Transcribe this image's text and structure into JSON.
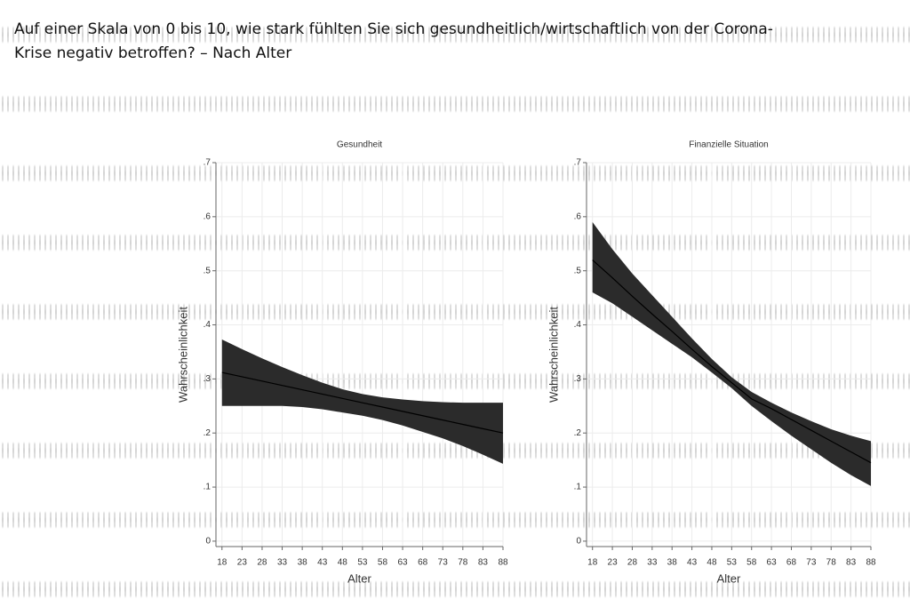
{
  "heading": [
    "Auf einer Skala von 0 bis 10, wie stark fühlten Sie sich gesundheitlich/wirtschaftlich von der Corona-",
    "Krise negativ betroffen? – Nach Alter"
  ],
  "chart_data": [
    {
      "type": "line",
      "title": "Gesundheit",
      "x_label": "Alter",
      "y_label": "Wahrscheinlichkeit",
      "x": [
        18,
        23,
        28,
        33,
        38,
        43,
        48,
        53,
        58,
        63,
        68,
        73,
        78,
        83,
        88
      ],
      "series": [
        {
          "color": "#2b2b2b",
          "values": [
            0.312,
            0.304,
            0.296,
            0.288,
            0.28,
            0.272,
            0.264,
            0.256,
            0.248,
            0.24,
            0.232,
            0.224,
            0.216,
            0.208,
            0.2
          ],
          "lower": [
            0.25,
            0.25,
            0.25,
            0.25,
            0.248,
            0.244,
            0.238,
            0.232,
            0.224,
            0.214,
            0.202,
            0.19,
            0.176,
            0.16,
            0.143
          ],
          "upper": [
            0.373,
            0.355,
            0.338,
            0.322,
            0.307,
            0.293,
            0.281,
            0.272,
            0.266,
            0.262,
            0.259,
            0.257,
            0.256,
            0.256,
            0.256
          ]
        }
      ],
      "xlim": [
        16.5,
        88
      ],
      "ylim": [
        -0.01,
        0.7
      ],
      "xticks": [
        18,
        23,
        28,
        33,
        38,
        43,
        48,
        53,
        58,
        63,
        68,
        73,
        78,
        83,
        88
      ],
      "yticks": [
        0,
        {
          "value": 0.1,
          "label": ".1"
        },
        {
          "value": 0.2,
          "label": ".2"
        },
        {
          "value": 0.3,
          "label": ".3"
        },
        {
          "value": 0.4,
          "label": ".4"
        },
        {
          "value": 0.5,
          "label": ".5"
        },
        {
          "value": 0.6,
          "label": ".6"
        },
        {
          "value": 0.7,
          "label": ".7"
        }
      ],
      "grid": true
    },
    {
      "type": "line",
      "title": "Finanzielle Situation",
      "x_label": "Alter",
      "y_label": "Wahrscheinlichkeit",
      "x": [
        18,
        23,
        28,
        33,
        38,
        43,
        48,
        53,
        58,
        63,
        68,
        73,
        78,
        83,
        88
      ],
      "series": [
        {
          "color": "#2b2b2b",
          "values": [
            0.52,
            0.487,
            0.453,
            0.42,
            0.388,
            0.355,
            0.323,
            0.293,
            0.263,
            0.245,
            0.225,
            0.205,
            0.185,
            0.165,
            0.145
          ],
          "lower": [
            0.46,
            0.44,
            0.415,
            0.39,
            0.365,
            0.34,
            0.312,
            0.283,
            0.25,
            0.222,
            0.195,
            0.17,
            0.145,
            0.122,
            0.102
          ],
          "upper": [
            0.59,
            0.54,
            0.495,
            0.455,
            0.415,
            0.375,
            0.337,
            0.303,
            0.276,
            0.256,
            0.238,
            0.222,
            0.207,
            0.195,
            0.185
          ]
        }
      ],
      "xlim": [
        16.5,
        88
      ],
      "ylim": [
        -0.01,
        0.7
      ],
      "xticks": [
        18,
        23,
        28,
        33,
        38,
        43,
        48,
        53,
        58,
        63,
        68,
        73,
        78,
        83,
        88
      ],
      "yticks": [
        0,
        {
          "value": 0.1,
          "label": ".1"
        },
        {
          "value": 0.2,
          "label": ".2"
        },
        {
          "value": 0.3,
          "label": ".3"
        },
        {
          "value": 0.4,
          "label": ".4"
        },
        {
          "value": 0.5,
          "label": ".5"
        },
        {
          "value": 0.6,
          "label": ".6"
        },
        {
          "value": 0.7,
          "label": ".7"
        }
      ],
      "grid": true
    }
  ]
}
